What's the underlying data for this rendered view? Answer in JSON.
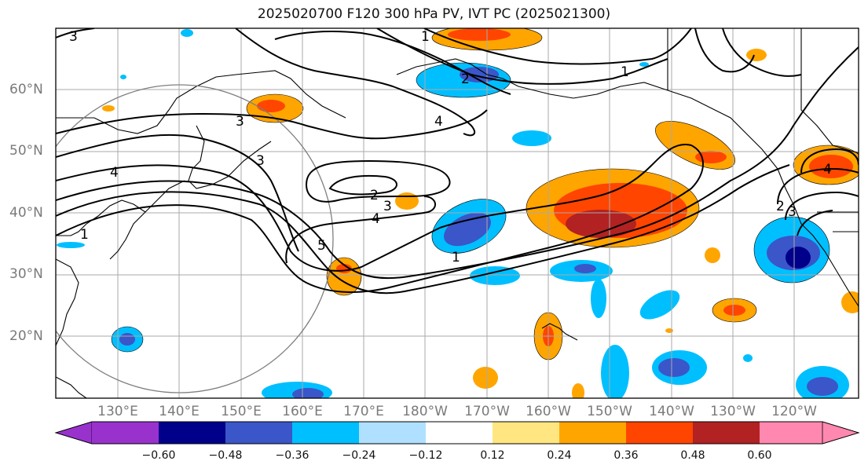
{
  "title": "2025020700 F120 300 hPa PV, IVT PC (2025021300)",
  "map": {
    "lat_labels": [
      "60°N",
      "50°N",
      "40°N",
      "30°N",
      "20°N"
    ],
    "lon_labels": [
      "130°E",
      "140°E",
      "150°E",
      "160°E",
      "170°E",
      "180°W",
      "170°W",
      "160°W",
      "150°W",
      "140°W",
      "130°W",
      "120°W"
    ],
    "contour_labels": [
      "3",
      "1",
      "2",
      "1",
      "3",
      "4",
      "2",
      "3",
      "4",
      "5",
      "1",
      "1",
      "4",
      "3",
      "2",
      "3",
      "4"
    ]
  },
  "colorbar": {
    "tick_labels": [
      "−0.60",
      "−0.48",
      "−0.36",
      "−0.24",
      "−0.12",
      "0.12",
      "0.24",
      "0.36",
      "0.48",
      "0.60"
    ],
    "colors": [
      "#9932cc",
      "#00008b",
      "#3a56c8",
      "#00bfff",
      "#b0e0ff",
      "#ffffff",
      "#ffe680",
      "#ffa500",
      "#ff4500",
      "#b22222",
      "#ff88b0"
    ]
  }
}
